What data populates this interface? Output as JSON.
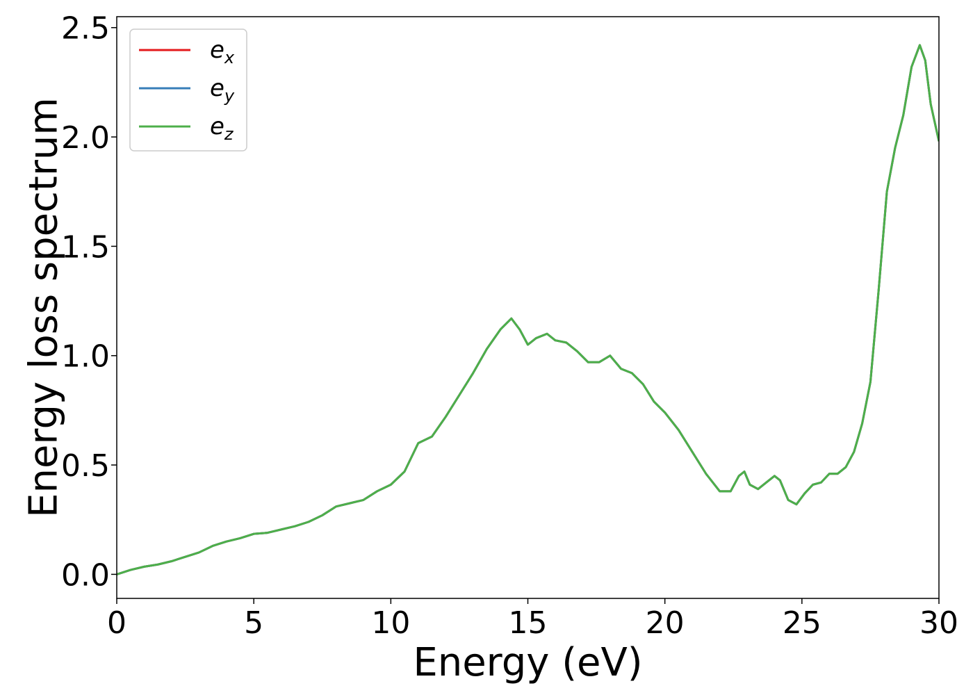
{
  "chart_data": {
    "type": "line",
    "xlabel": "Energy (eV)",
    "ylabel": "Energy loss spectrum",
    "xlim": [
      0,
      30
    ],
    "ylim": [
      -0.11,
      2.55
    ],
    "xticks": [
      0,
      5,
      10,
      15,
      20,
      25,
      30
    ],
    "xtick_labels": [
      "0",
      "5",
      "10",
      "15",
      "20",
      "25",
      "30"
    ],
    "yticks": [
      0.0,
      0.5,
      1.0,
      1.5,
      2.0,
      2.5
    ],
    "ytick_labels": [
      "0.0",
      "0.5",
      "1.0",
      "1.5",
      "2.0",
      "2.5"
    ],
    "grid": false,
    "legend_position": "top-left",
    "x": [
      0,
      0.5,
      1.0,
      1.5,
      2.0,
      2.5,
      3.0,
      3.5,
      4.0,
      4.5,
      5.0,
      5.5,
      6.0,
      6.5,
      7.0,
      7.5,
      8.0,
      8.5,
      9.0,
      9.5,
      10.0,
      10.5,
      11.0,
      11.5,
      12.0,
      12.5,
      13.0,
      13.5,
      14.0,
      14.4,
      14.7,
      15.0,
      15.3,
      15.7,
      16.0,
      16.4,
      16.8,
      17.2,
      17.6,
      18.0,
      18.4,
      18.8,
      19.2,
      19.6,
      20.0,
      20.5,
      21.0,
      21.5,
      22.0,
      22.4,
      22.7,
      22.9,
      23.1,
      23.4,
      23.7,
      24.0,
      24.2,
      24.5,
      24.8,
      25.1,
      25.4,
      25.7,
      26.0,
      26.3,
      26.6,
      26.9,
      27.2,
      27.5,
      27.8,
      28.1,
      28.4,
      28.7,
      29.0,
      29.3,
      29.5,
      29.7,
      30.0
    ],
    "series": [
      {
        "name": "e_x",
        "label_main": "e",
        "label_sub": "x",
        "color": "#e41a1c",
        "values": [
          0.0,
          0.02,
          0.035,
          0.045,
          0.06,
          0.08,
          0.1,
          0.13,
          0.15,
          0.165,
          0.185,
          0.19,
          0.205,
          0.22,
          0.24,
          0.27,
          0.31,
          0.325,
          0.34,
          0.38,
          0.41,
          0.47,
          0.6,
          0.63,
          0.72,
          0.82,
          0.92,
          1.03,
          1.12,
          1.17,
          1.12,
          1.05,
          1.08,
          1.1,
          1.07,
          1.06,
          1.02,
          0.97,
          0.97,
          1.0,
          0.94,
          0.92,
          0.87,
          0.79,
          0.74,
          0.66,
          0.56,
          0.46,
          0.38,
          0.38,
          0.45,
          0.47,
          0.41,
          0.39,
          0.42,
          0.45,
          0.43,
          0.34,
          0.32,
          0.37,
          0.41,
          0.42,
          0.46,
          0.46,
          0.49,
          0.56,
          0.69,
          0.88,
          1.3,
          1.75,
          1.95,
          2.1,
          2.32,
          2.42,
          2.35,
          2.15,
          1.98
        ]
      },
      {
        "name": "e_y",
        "label_main": "e",
        "label_sub": "y",
        "color": "#377eb8",
        "values": [
          0.0,
          0.02,
          0.035,
          0.045,
          0.06,
          0.08,
          0.1,
          0.13,
          0.15,
          0.165,
          0.185,
          0.19,
          0.205,
          0.22,
          0.24,
          0.27,
          0.31,
          0.325,
          0.34,
          0.38,
          0.41,
          0.47,
          0.6,
          0.63,
          0.72,
          0.82,
          0.92,
          1.03,
          1.12,
          1.17,
          1.12,
          1.05,
          1.08,
          1.1,
          1.07,
          1.06,
          1.02,
          0.97,
          0.97,
          1.0,
          0.94,
          0.92,
          0.87,
          0.79,
          0.74,
          0.66,
          0.56,
          0.46,
          0.38,
          0.38,
          0.45,
          0.47,
          0.41,
          0.39,
          0.42,
          0.45,
          0.43,
          0.34,
          0.32,
          0.37,
          0.41,
          0.42,
          0.46,
          0.46,
          0.49,
          0.56,
          0.69,
          0.88,
          1.3,
          1.75,
          1.95,
          2.1,
          2.32,
          2.42,
          2.35,
          2.15,
          1.98
        ]
      },
      {
        "name": "e_z",
        "label_main": "e",
        "label_sub": "z",
        "color": "#4daf4a",
        "values": [
          0.0,
          0.02,
          0.035,
          0.045,
          0.06,
          0.08,
          0.1,
          0.13,
          0.15,
          0.165,
          0.185,
          0.19,
          0.205,
          0.22,
          0.24,
          0.27,
          0.31,
          0.325,
          0.34,
          0.38,
          0.41,
          0.47,
          0.6,
          0.63,
          0.72,
          0.82,
          0.92,
          1.03,
          1.12,
          1.17,
          1.12,
          1.05,
          1.08,
          1.1,
          1.07,
          1.06,
          1.02,
          0.97,
          0.97,
          1.0,
          0.94,
          0.92,
          0.87,
          0.79,
          0.74,
          0.66,
          0.56,
          0.46,
          0.38,
          0.38,
          0.45,
          0.47,
          0.41,
          0.39,
          0.42,
          0.45,
          0.43,
          0.34,
          0.32,
          0.37,
          0.41,
          0.42,
          0.46,
          0.46,
          0.49,
          0.56,
          0.69,
          0.88,
          1.3,
          1.75,
          1.95,
          2.1,
          2.32,
          2.42,
          2.35,
          2.15,
          1.98
        ]
      }
    ]
  }
}
